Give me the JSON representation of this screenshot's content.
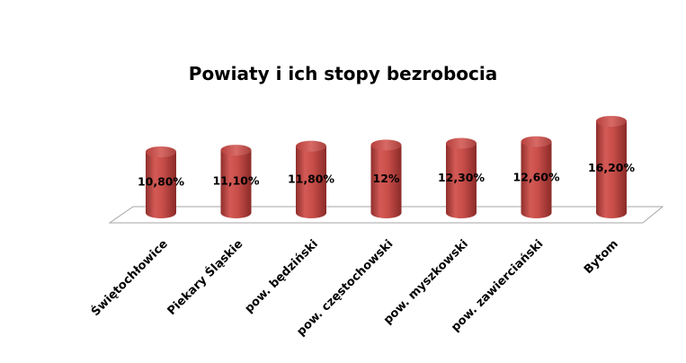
{
  "chart_data": {
    "type": "bar",
    "title": "Powiaty i ich stopy bezrobocia",
    "categories": [
      "Świętochłowice",
      "Piekary Śląskie",
      "pow. będziński",
      "pow. częstochowski",
      "pow. myszkowski",
      "pow. zawierciański",
      "Bytom"
    ],
    "values": [
      10.8,
      11.1,
      11.8,
      12.0,
      12.3,
      12.6,
      16.2
    ],
    "data_labels": [
      "10,80%",
      "11,10%",
      "11,80%",
      "12%",
      "12,30%",
      "12,60%",
      "16,20%"
    ],
    "ylim": [
      0,
      20
    ],
    "grid": false,
    "legend": "none",
    "style": "3d-cylinder",
    "bar_color": "#c0504d"
  }
}
